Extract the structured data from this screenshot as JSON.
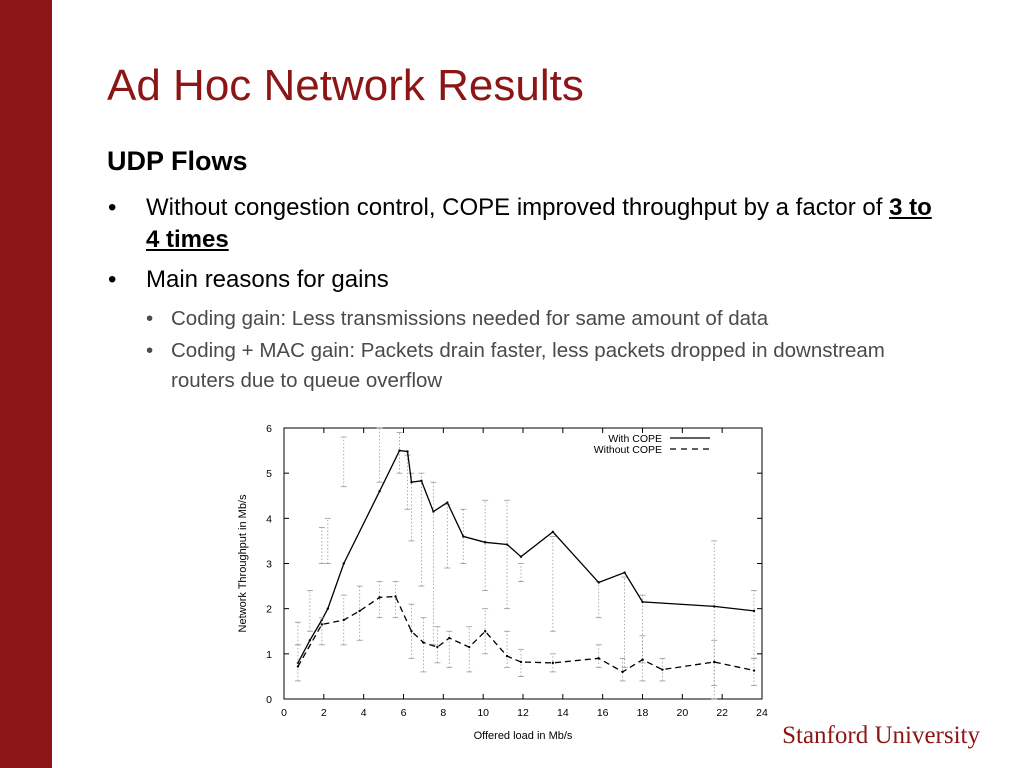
{
  "slide": {
    "title": "Ad Hoc Network Results",
    "subtitle": "UDP Flows",
    "bullet1_prefix": "Without congestion control, COPE improved throughput by a factor of ",
    "bullet1_emph": "3 to 4 times",
    "bullet2": "Main reasons for gains",
    "sub1": "Coding gain: Less transmissions needed for same amount of data",
    "sub2": "Coding + MAC gain: Packets drain faster, less packets dropped in downstream routers due to queue overflow",
    "bullet_glyph": "•",
    "footer_brand": "Stanford University"
  },
  "colors": {
    "brand": "#8c1515",
    "sub_text": "#4a4a4a"
  },
  "chart_data": {
    "type": "line",
    "xlabel": "Offered load in Mb/s",
    "ylabel": "Network Throughput in Mb/s",
    "xlim": [
      0,
      24
    ],
    "ylim": [
      0,
      6
    ],
    "xticks": [
      0,
      2,
      4,
      6,
      8,
      10,
      12,
      14,
      16,
      18,
      20,
      22,
      24
    ],
    "yticks": [
      0,
      1,
      2,
      3,
      4,
      5,
      6
    ],
    "grid": false,
    "legend_position": "top-right",
    "series": [
      {
        "name": "With COPE",
        "style": "solid",
        "points": [
          [
            0.7,
            0.8
          ],
          [
            1.3,
            1.3
          ],
          [
            1.9,
            1.75
          ],
          [
            2.2,
            2.0
          ],
          [
            3.0,
            3.0
          ],
          [
            4.8,
            4.6
          ],
          [
            5.8,
            5.5
          ],
          [
            6.2,
            5.48
          ],
          [
            6.4,
            4.8
          ],
          [
            6.9,
            4.83
          ],
          [
            7.5,
            4.15
          ],
          [
            8.2,
            4.35
          ],
          [
            9.0,
            3.6
          ],
          [
            10.1,
            3.47
          ],
          [
            11.2,
            3.42
          ],
          [
            11.9,
            3.15
          ],
          [
            13.5,
            3.7
          ],
          [
            15.8,
            2.58
          ],
          [
            17.1,
            2.8
          ],
          [
            18.0,
            2.15
          ],
          [
            21.6,
            2.05
          ],
          [
            23.6,
            1.95
          ]
        ],
        "error_bars": [
          [
            1.2,
            1.7
          ],
          [
            1.5,
            2.4
          ],
          [
            3.0,
            3.8
          ],
          [
            3.0,
            4.0
          ],
          [
            4.7,
            5.8
          ],
          [
            4.8,
            6.0
          ],
          [
            5.0,
            5.9
          ],
          [
            4.2,
            5.4
          ],
          [
            3.5,
            5.0
          ],
          [
            2.5,
            5.0
          ],
          [
            1.2,
            4.8
          ],
          [
            2.9,
            4.3
          ],
          [
            3.0,
            4.2
          ],
          [
            2.4,
            4.4
          ],
          [
            2.0,
            4.4
          ],
          [
            2.6,
            3.0
          ],
          [
            1.5,
            3.6
          ],
          [
            1.8,
            2.6
          ],
          [
            0.7,
            2.7
          ],
          [
            0.8,
            2.3
          ],
          [
            0,
            3.5
          ],
          [
            0.9,
            2.4
          ]
        ]
      },
      {
        "name": "Without COPE",
        "style": "dashed",
        "points": [
          [
            0.7,
            0.72
          ],
          [
            1.9,
            1.65
          ],
          [
            3.0,
            1.75
          ],
          [
            3.8,
            1.95
          ],
          [
            4.8,
            2.25
          ],
          [
            5.6,
            2.27
          ],
          [
            6.4,
            1.5
          ],
          [
            7.0,
            1.25
          ],
          [
            7.7,
            1.15
          ],
          [
            8.3,
            1.35
          ],
          [
            9.3,
            1.15
          ],
          [
            10.1,
            1.5
          ],
          [
            11.2,
            0.95
          ],
          [
            11.9,
            0.82
          ],
          [
            13.5,
            0.8
          ],
          [
            15.8,
            0.9
          ],
          [
            17.0,
            0.6
          ],
          [
            18.0,
            0.87
          ],
          [
            19.0,
            0.65
          ],
          [
            21.6,
            0.82
          ],
          [
            23.6,
            0.63
          ]
        ],
        "error_bars": [
          [
            0.4,
            1.2
          ],
          [
            1.2,
            1.8
          ],
          [
            1.2,
            2.3
          ],
          [
            1.3,
            2.5
          ],
          [
            1.8,
            2.6
          ],
          [
            1.8,
            2.6
          ],
          [
            0.9,
            2.1
          ],
          [
            0.6,
            1.8
          ],
          [
            0.8,
            1.6
          ],
          [
            0.7,
            1.5
          ],
          [
            0.6,
            1.6
          ],
          [
            1.0,
            2.0
          ],
          [
            0.7,
            1.5
          ],
          [
            0.5,
            1.1
          ],
          [
            0.6,
            1.0
          ],
          [
            0.7,
            1.2
          ],
          [
            0.4,
            0.9
          ],
          [
            0.4,
            1.4
          ],
          [
            0.4,
            0.9
          ],
          [
            0.3,
            1.3
          ],
          [
            0.3,
            0.9
          ]
        ]
      }
    ]
  }
}
